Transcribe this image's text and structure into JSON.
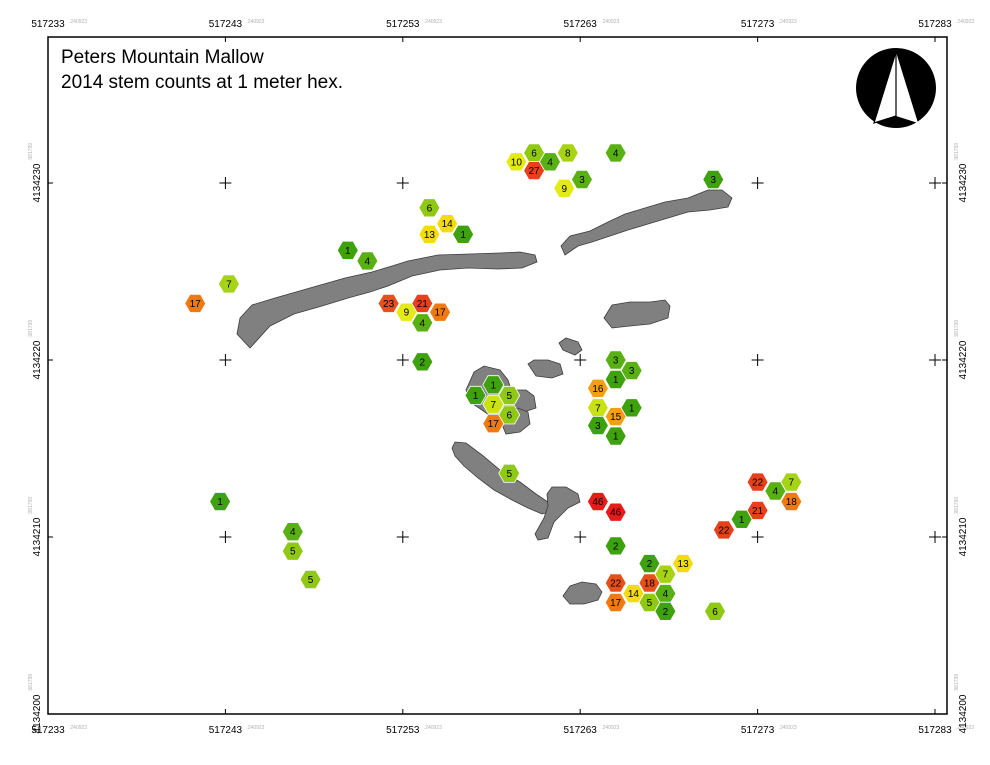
{
  "title": {
    "line1": "Peters Mountain Mallow",
    "line2": "2014 stem counts at 1 meter hex."
  },
  "x_ticks": [
    "517233",
    "517243",
    "517253",
    "517263",
    "517273",
    "517283"
  ],
  "y_ticks": [
    "4134230",
    "4134220",
    "4134210",
    "4134200"
  ],
  "x_tick_suffix": ".240923",
  "y_tick_suffix": ".981799",
  "north_arrow": {
    "icon": "north-arrow-icon"
  },
  "colors": {
    "frame": "#000000",
    "rock": "#808080",
    "rock_stroke": "#3c3c3c",
    "hex_stroke": "#ffffff"
  },
  "hexes": [
    {
      "x": 517249.9,
      "y": 4134226.2,
      "count": "1",
      "color": "#3ea10e"
    },
    {
      "x": 517251.0,
      "y": 4134225.6,
      "count": "4",
      "color": "#58b012"
    },
    {
      "x": 517243.2,
      "y": 4134224.3,
      "count": "7",
      "color": "#a6d415"
    },
    {
      "x": 517241.3,
      "y": 4134223.2,
      "count": "17",
      "color": "#f07a10"
    },
    {
      "x": 517252.2,
      "y": 4134223.2,
      "count": "23",
      "color": "#e8501a"
    },
    {
      "x": 517253.2,
      "y": 4134222.7,
      "count": "9",
      "color": "#e4ea14"
    },
    {
      "x": 517254.1,
      "y": 4134223.2,
      "count": "21",
      "color": "#e8401a"
    },
    {
      "x": 517255.1,
      "y": 4134222.7,
      "count": "17",
      "color": "#f07a10"
    },
    {
      "x": 517254.1,
      "y": 4134222.1,
      "count": "4",
      "color": "#58b012"
    },
    {
      "x": 517254.1,
      "y": 4134219.9,
      "count": "2",
      "color": "#3ea10e"
    },
    {
      "x": 517254.5,
      "y": 4134228.6,
      "count": "6",
      "color": "#8fc914"
    },
    {
      "x": 517254.5,
      "y": 4134227.1,
      "count": "13",
      "color": "#f2dc0e"
    },
    {
      "x": 517255.5,
      "y": 4134227.7,
      "count": "14",
      "color": "#f2dc0e"
    },
    {
      "x": 517256.4,
      "y": 4134227.1,
      "count": "1",
      "color": "#3ea10e"
    },
    {
      "x": 517257.1,
      "y": 4134218.0,
      "count": "1",
      "color": "#3ea10e"
    },
    {
      "x": 517258.1,
      "y": 4134218.6,
      "count": "1",
      "color": "#3ea10e"
    },
    {
      "x": 517259.0,
      "y": 4134218.0,
      "count": "5",
      "color": "#8fc914"
    },
    {
      "x": 517258.1,
      "y": 4134217.5,
      "count": "7",
      "color": "#c8e214"
    },
    {
      "x": 517259.0,
      "y": 4134216.9,
      "count": "6",
      "color": "#8fc914"
    },
    {
      "x": 517258.1,
      "y": 4134216.4,
      "count": "17",
      "color": "#f07a10"
    },
    {
      "x": 517259.0,
      "y": 4134213.6,
      "count": "5",
      "color": "#8fc914"
    },
    {
      "x": 517259.4,
      "y": 4134231.2,
      "count": "10",
      "color": "#e4ea14"
    },
    {
      "x": 517260.4,
      "y": 4134231.7,
      "count": "6",
      "color": "#8fc914"
    },
    {
      "x": 517260.4,
      "y": 4134230.7,
      "count": "27",
      "color": "#e8401a"
    },
    {
      "x": 517261.3,
      "y": 4134231.2,
      "count": "4",
      "color": "#58b012"
    },
    {
      "x": 517262.3,
      "y": 4134231.7,
      "count": "8",
      "color": "#a6d415"
    },
    {
      "x": 517262.1,
      "y": 4134229.7,
      "count": "9",
      "color": "#e4ea14"
    },
    {
      "x": 517263.1,
      "y": 4134230.2,
      "count": "3",
      "color": "#58b012"
    },
    {
      "x": 517265.0,
      "y": 4134231.7,
      "count": "4",
      "color": "#58b012"
    },
    {
      "x": 517270.5,
      "y": 4134230.2,
      "count": "3",
      "color": "#3ea10e"
    },
    {
      "x": 517265.0,
      "y": 4134220.0,
      "count": "3",
      "color": "#58b012"
    },
    {
      "x": 517265.9,
      "y": 4134219.4,
      "count": "3",
      "color": "#58b012"
    },
    {
      "x": 517265.0,
      "y": 4134218.9,
      "count": "1",
      "color": "#3ea10e"
    },
    {
      "x": 517264.0,
      "y": 4134218.4,
      "count": "16",
      "color": "#f0a010"
    },
    {
      "x": 517264.0,
      "y": 4134217.3,
      "count": "7",
      "color": "#c8e214"
    },
    {
      "x": 517265.0,
      "y": 4134216.8,
      "count": "15",
      "color": "#f0a010"
    },
    {
      "x": 517265.9,
      "y": 4134217.3,
      "count": "1",
      "color": "#3ea10e"
    },
    {
      "x": 517264.0,
      "y": 4134216.3,
      "count": "3",
      "color": "#3ea10e"
    },
    {
      "x": 517265.0,
      "y": 4134215.7,
      "count": "1",
      "color": "#3ea10e"
    },
    {
      "x": 517264.0,
      "y": 4134212.0,
      "count": "46",
      "color": "#e81a1a"
    },
    {
      "x": 517265.0,
      "y": 4134211.4,
      "count": "46",
      "color": "#e81a1a"
    },
    {
      "x": 517265.0,
      "y": 4134209.5,
      "count": "2",
      "color": "#3ea10e"
    },
    {
      "x": 517265.0,
      "y": 4134207.4,
      "count": "22",
      "color": "#e8501a"
    },
    {
      "x": 517266.9,
      "y": 4134208.5,
      "count": "2",
      "color": "#3ea10e"
    },
    {
      "x": 517267.8,
      "y": 4134207.9,
      "count": "7",
      "color": "#a6d415"
    },
    {
      "x": 517268.8,
      "y": 4134208.5,
      "count": "13",
      "color": "#f2dc0e"
    },
    {
      "x": 517266.9,
      "y": 4134207.4,
      "count": "18",
      "color": "#e8501a"
    },
    {
      "x": 517266.0,
      "y": 4134206.8,
      "count": "14",
      "color": "#f2dc0e"
    },
    {
      "x": 517267.8,
      "y": 4134206.8,
      "count": "4",
      "color": "#58b012"
    },
    {
      "x": 517265.0,
      "y": 4134206.3,
      "count": "17",
      "color": "#f07a10"
    },
    {
      "x": 517266.9,
      "y": 4134206.3,
      "count": "5",
      "color": "#8fc914"
    },
    {
      "x": 517267.8,
      "y": 4134205.8,
      "count": "2",
      "color": "#3ea10e"
    },
    {
      "x": 517270.6,
      "y": 4134205.8,
      "count": "6",
      "color": "#8fc914"
    },
    {
      "x": 517273.0,
      "y": 4134213.1,
      "count": "22",
      "color": "#e8401a"
    },
    {
      "x": 517274.9,
      "y": 4134213.1,
      "count": "7",
      "color": "#a6d415"
    },
    {
      "x": 517274.0,
      "y": 4134212.6,
      "count": "4",
      "color": "#58b012"
    },
    {
      "x": 517274.9,
      "y": 4134212.0,
      "count": "18",
      "color": "#f07a10"
    },
    {
      "x": 517273.0,
      "y": 4134211.5,
      "count": "21",
      "color": "#e8401a"
    },
    {
      "x": 517272.1,
      "y": 4134211.0,
      "count": "1",
      "color": "#3ea10e"
    },
    {
      "x": 517271.1,
      "y": 4134210.4,
      "count": "22",
      "color": "#e8401a"
    },
    {
      "x": 517242.7,
      "y": 4134212.0,
      "count": "1",
      "color": "#3ea10e"
    },
    {
      "x": 517246.8,
      "y": 4134210.3,
      "count": "4",
      "color": "#58b012"
    },
    {
      "x": 517246.8,
      "y": 4134209.2,
      "count": "5",
      "color": "#8fc914"
    },
    {
      "x": 517247.8,
      "y": 4134207.6,
      "count": "5",
      "color": "#8fc914"
    }
  ]
}
